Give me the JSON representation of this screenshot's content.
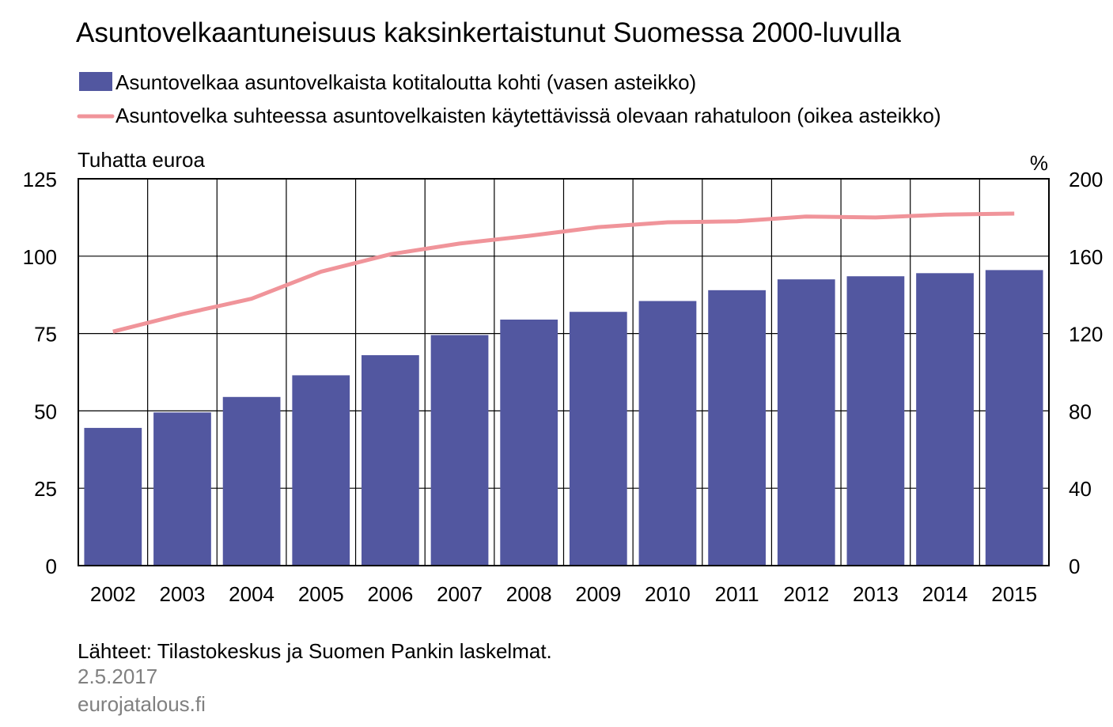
{
  "chart_data": {
    "type": "bar",
    "title": "Asuntovelkaantuneisuus kaksinkertaistunut Suomessa 2000-luvulla",
    "categories": [
      "2002",
      "2003",
      "2004",
      "2005",
      "2006",
      "2007",
      "2008",
      "2009",
      "2010",
      "2011",
      "2012",
      "2013",
      "2014",
      "2015"
    ],
    "series": [
      {
        "name": "Asuntovelkaa asuntovelkaista kotitaloutta kohti (vasen asteikko)",
        "kind": "bar",
        "axis": "left",
        "color": "#5257a0",
        "values": [
          44.5,
          49.5,
          54.5,
          61.5,
          68,
          74.5,
          79.5,
          82,
          85.5,
          89,
          92.5,
          93.5,
          94.5,
          95.5
        ]
      },
      {
        "name": "Asuntovelka suhteessa asuntovelkaisten käytettävissä olevaan rahatuloon (oikea asteikko)",
        "kind": "line",
        "axis": "right",
        "color": "#f0949a",
        "values": [
          121,
          130,
          138,
          152,
          161,
          166.5,
          170.5,
          175,
          177.5,
          178,
          180.5,
          180,
          181.5,
          182
        ]
      }
    ],
    "ylabel_left": "Tuhatta euroa",
    "ylabel_right": "%",
    "ylim_left": [
      0,
      125
    ],
    "ylim_right": [
      0,
      200
    ],
    "yticks_left": [
      "0",
      "25",
      "50",
      "75",
      "100",
      "125"
    ],
    "yticks_right": [
      "0",
      "40",
      "80",
      "120",
      "160",
      "200"
    ],
    "grid": true,
    "legend_position": "top",
    "footer": {
      "source": "Lähteet: Tilastokeskus  ja Suomen Pankin laskelmat.",
      "date": "2.5.2017",
      "site": "eurojatalous.fi"
    }
  }
}
